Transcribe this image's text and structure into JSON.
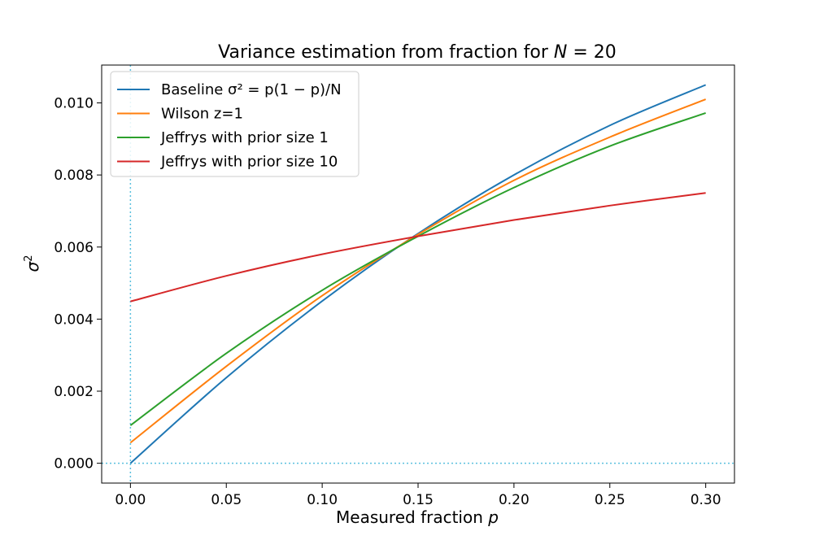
{
  "chart_data": {
    "type": "line",
    "title_main": "Variance estimation from fraction for ",
    "title_var": "N",
    "title_rest": " = 20",
    "xlabel_main": "Measured fraction ",
    "xlabel_var": "p",
    "ylabel_var": "σ",
    "ylabel_sup": "2",
    "xlim": [
      -0.015,
      0.315
    ],
    "ylim": [
      -0.00055,
      0.01105
    ],
    "xticks": [
      0.0,
      0.05,
      0.1,
      0.15,
      0.2,
      0.25,
      0.3
    ],
    "xtick_labels": [
      "0.00",
      "0.05",
      "0.10",
      "0.15",
      "0.20",
      "0.25",
      "0.30"
    ],
    "yticks": [
      0.0,
      0.002,
      0.004,
      0.006,
      0.008,
      0.01
    ],
    "ytick_labels": [
      "0.000",
      "0.002",
      "0.004",
      "0.006",
      "0.008",
      "0.010"
    ],
    "reference_lines": {
      "x": 0.0,
      "y": 0.0,
      "color": "#5bc0de",
      "style": "dotted"
    },
    "legend": {
      "location": "upper-left",
      "items": [
        {
          "text": "Baseline σ² = p(1 − p)/N",
          "color": "#1f77b4"
        },
        {
          "text": "Wilson z=1",
          "color": "#ff7f0e"
        },
        {
          "text": "Jeffrys with prior size 1",
          "color": "#2ca02c"
        },
        {
          "text": "Jeffrys with prior size 10",
          "color": "#d62728"
        }
      ]
    },
    "series": [
      {
        "name": "Baseline σ² = p(1 − p)/N",
        "color": "#1f77b4",
        "x": [
          0.0,
          0.05,
          0.1,
          0.15,
          0.2,
          0.25,
          0.3
        ],
        "y": [
          0.0,
          0.002375,
          0.0045,
          0.006375,
          0.008,
          0.009375,
          0.0105
        ]
      },
      {
        "name": "Wilson z=1",
        "color": "#ff7f0e",
        "x": [
          0.0,
          0.05,
          0.1,
          0.15,
          0.2,
          0.25,
          0.3
        ],
        "y": [
          0.00057,
          0.00269,
          0.00465,
          0.00635,
          0.00785,
          0.00905,
          0.0101
        ]
      },
      {
        "name": "Jeffrys with prior size 1",
        "color": "#2ca02c",
        "x": [
          0.0,
          0.05,
          0.1,
          0.15,
          0.2,
          0.25,
          0.3
        ],
        "y": [
          0.00105,
          0.00305,
          0.0048,
          0.0063,
          0.00765,
          0.0088,
          0.00972
        ]
      },
      {
        "name": "Jeffrys with prior size 10",
        "color": "#d62728",
        "x": [
          0.0,
          0.05,
          0.1,
          0.15,
          0.2,
          0.25,
          0.3
        ],
        "y": [
          0.00449,
          0.0052,
          0.0058,
          0.0063,
          0.00675,
          0.00715,
          0.0075
        ]
      }
    ]
  }
}
